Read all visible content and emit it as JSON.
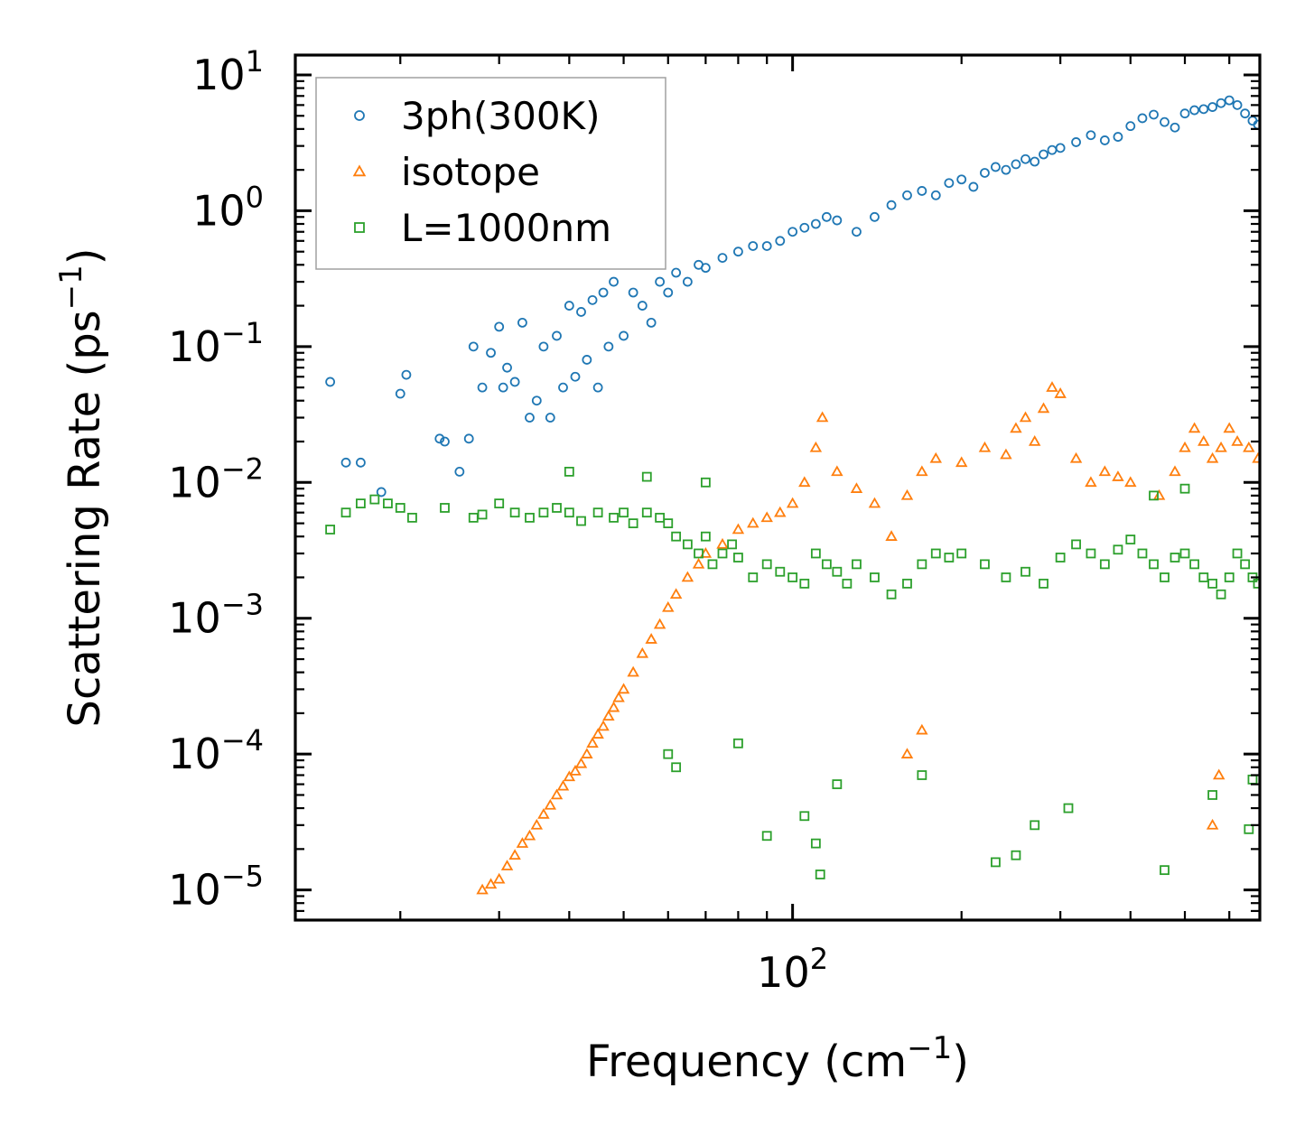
{
  "chart_data": {
    "type": "scatter",
    "title": "",
    "xlabel": "Frequency (cm⁻¹)",
    "ylabel": "Scattering Rate (ps⁻¹)",
    "xscale": "log",
    "yscale": "log",
    "xlim": [
      13,
      680
    ],
    "ylim": [
      6e-06,
      14
    ],
    "xticks": [
      {
        "value": 100,
        "base": "10",
        "exp": "2"
      }
    ],
    "yticks": [
      {
        "value": 10,
        "base": "10",
        "exp": "1"
      },
      {
        "value": 1,
        "base": "10",
        "exp": "0"
      },
      {
        "value": 0.1,
        "base": "10",
        "exp": "−1"
      },
      {
        "value": 0.01,
        "base": "10",
        "exp": "−2"
      },
      {
        "value": 0.001,
        "base": "10",
        "exp": "−3"
      },
      {
        "value": 0.0001,
        "base": "10",
        "exp": "−4"
      },
      {
        "value": 1e-05,
        "base": "10",
        "exp": "−5"
      }
    ],
    "legend_position": "top-left",
    "series": [
      {
        "name": "3ph(300K)",
        "marker": "circle",
        "color": "#1f77b4",
        "points": [
          [
            15,
            0.055
          ],
          [
            16,
            0.014
          ],
          [
            17,
            0.014
          ],
          [
            18.5,
            0.0085
          ],
          [
            20,
            0.045
          ],
          [
            20.5,
            0.062
          ],
          [
            23.5,
            0.021
          ],
          [
            24,
            0.02
          ],
          [
            25.5,
            0.012
          ],
          [
            26.5,
            0.021
          ],
          [
            27,
            0.1
          ],
          [
            28,
            0.05
          ],
          [
            29,
            0.09
          ],
          [
            30,
            0.14
          ],
          [
            30.5,
            0.05
          ],
          [
            31,
            0.07
          ],
          [
            32,
            0.055
          ],
          [
            33,
            0.15
          ],
          [
            34,
            0.03
          ],
          [
            35,
            0.04
          ],
          [
            36,
            0.1
          ],
          [
            37,
            0.03
          ],
          [
            38,
            0.12
          ],
          [
            39,
            0.05
          ],
          [
            40,
            0.2
          ],
          [
            41,
            0.06
          ],
          [
            42,
            0.18
          ],
          [
            43,
            0.08
          ],
          [
            44,
            0.22
          ],
          [
            45,
            0.05
          ],
          [
            46,
            0.25
          ],
          [
            47,
            0.1
          ],
          [
            48,
            0.3
          ],
          [
            50,
            0.12
          ],
          [
            52,
            0.25
          ],
          [
            54,
            0.2
          ],
          [
            56,
            0.15
          ],
          [
            58,
            0.3
          ],
          [
            60,
            0.25
          ],
          [
            62,
            0.35
          ],
          [
            65,
            0.3
          ],
          [
            68,
            0.4
          ],
          [
            70,
            0.38
          ],
          [
            75,
            0.45
          ],
          [
            80,
            0.5
          ],
          [
            85,
            0.55
          ],
          [
            90,
            0.55
          ],
          [
            95,
            0.6
          ],
          [
            100,
            0.7
          ],
          [
            105,
            0.75
          ],
          [
            110,
            0.8
          ],
          [
            115,
            0.9
          ],
          [
            120,
            0.85
          ],
          [
            130,
            0.7
          ],
          [
            140,
            0.9
          ],
          [
            150,
            1.1
          ],
          [
            160,
            1.3
          ],
          [
            170,
            1.4
          ],
          [
            180,
            1.3
          ],
          [
            190,
            1.6
          ],
          [
            200,
            1.7
          ],
          [
            210,
            1.5
          ],
          [
            220,
            1.9
          ],
          [
            230,
            2.1
          ],
          [
            240,
            2.0
          ],
          [
            250,
            2.2
          ],
          [
            260,
            2.4
          ],
          [
            270,
            2.3
          ],
          [
            280,
            2.6
          ],
          [
            290,
            2.8
          ],
          [
            300,
            2.9
          ],
          [
            320,
            3.2
          ],
          [
            340,
            3.6
          ],
          [
            360,
            3.3
          ],
          [
            380,
            3.5
          ],
          [
            400,
            4.2
          ],
          [
            420,
            4.8
          ],
          [
            440,
            5.1
          ],
          [
            460,
            4.5
          ],
          [
            480,
            4.1
          ],
          [
            500,
            5.2
          ],
          [
            520,
            5.5
          ],
          [
            540,
            5.6
          ],
          [
            560,
            5.8
          ],
          [
            580,
            6.2
          ],
          [
            600,
            6.5
          ],
          [
            620,
            6.0
          ],
          [
            640,
            5.2
          ],
          [
            660,
            4.6
          ],
          [
            675,
            4.3
          ]
        ]
      },
      {
        "name": "isotope",
        "marker": "triangle",
        "color": "#ff7f0e",
        "points": [
          [
            28,
            1e-05
          ],
          [
            29,
            1.1e-05
          ],
          [
            30,
            1.2e-05
          ],
          [
            31,
            1.5e-05
          ],
          [
            32,
            1.8e-05
          ],
          [
            33,
            2.2e-05
          ],
          [
            34,
            2.5e-05
          ],
          [
            35,
            3e-05
          ],
          [
            36,
            3.6e-05
          ],
          [
            37,
            4.2e-05
          ],
          [
            38,
            5e-05
          ],
          [
            39,
            5.8e-05
          ],
          [
            40,
            6.8e-05
          ],
          [
            41,
            7.5e-05
          ],
          [
            42,
            8.5e-05
          ],
          [
            43,
            0.0001
          ],
          [
            44,
            0.00012
          ],
          [
            45,
            0.00014
          ],
          [
            46,
            0.00016
          ],
          [
            47,
            0.00019
          ],
          [
            48,
            0.00022
          ],
          [
            49,
            0.00026
          ],
          [
            50,
            0.0003
          ],
          [
            52,
            0.0004
          ],
          [
            54,
            0.00055
          ],
          [
            56,
            0.0007
          ],
          [
            58,
            0.0009
          ],
          [
            60,
            0.0012
          ],
          [
            62,
            0.0015
          ],
          [
            65,
            0.002
          ],
          [
            68,
            0.0025
          ],
          [
            70,
            0.003
          ],
          [
            75,
            0.0035
          ],
          [
            80,
            0.0045
          ],
          [
            85,
            0.005
          ],
          [
            90,
            0.0055
          ],
          [
            95,
            0.006
          ],
          [
            100,
            0.007
          ],
          [
            105,
            0.01
          ],
          [
            110,
            0.018
          ],
          [
            113,
            0.03
          ],
          [
            120,
            0.012
          ],
          [
            130,
            0.009
          ],
          [
            140,
            0.007
          ],
          [
            150,
            0.004
          ],
          [
            160,
            0.008
          ],
          [
            170,
            0.012
          ],
          [
            180,
            0.015
          ],
          [
            200,
            0.014
          ],
          [
            220,
            0.018
          ],
          [
            240,
            0.016
          ],
          [
            250,
            0.025
          ],
          [
            260,
            0.03
          ],
          [
            270,
            0.02
          ],
          [
            280,
            0.035
          ],
          [
            290,
            0.05
          ],
          [
            300,
            0.045
          ],
          [
            320,
            0.015
          ],
          [
            340,
            0.01
          ],
          [
            360,
            0.012
          ],
          [
            380,
            0.011
          ],
          [
            400,
            0.01
          ],
          [
            450,
            0.008
          ],
          [
            480,
            0.012
          ],
          [
            500,
            0.018
          ],
          [
            520,
            0.025
          ],
          [
            540,
            0.02
          ],
          [
            560,
            0.015
          ],
          [
            580,
            0.018
          ],
          [
            600,
            0.025
          ],
          [
            620,
            0.02
          ],
          [
            650,
            0.018
          ],
          [
            675,
            0.015
          ],
          [
            160,
            0.0001
          ],
          [
            170,
            0.00015
          ],
          [
            560,
            3e-05
          ],
          [
            575,
            7e-05
          ]
        ]
      },
      {
        "name": "L=1000nm",
        "marker": "square",
        "color": "#2ca02c",
        "points": [
          [
            15,
            0.0045
          ],
          [
            16,
            0.006
          ],
          [
            17,
            0.007
          ],
          [
            18,
            0.0075
          ],
          [
            19,
            0.007
          ],
          [
            20,
            0.0065
          ],
          [
            21,
            0.0055
          ],
          [
            24,
            0.0065
          ],
          [
            27,
            0.0055
          ],
          [
            28,
            0.0058
          ],
          [
            30,
            0.007
          ],
          [
            32,
            0.006
          ],
          [
            34,
            0.0055
          ],
          [
            36,
            0.006
          ],
          [
            38,
            0.0065
          ],
          [
            40,
            0.006
          ],
          [
            42,
            0.0052
          ],
          [
            45,
            0.006
          ],
          [
            48,
            0.0055
          ],
          [
            50,
            0.006
          ],
          [
            52,
            0.005
          ],
          [
            55,
            0.006
          ],
          [
            58,
            0.0055
          ],
          [
            60,
            0.005
          ],
          [
            62,
            0.004
          ],
          [
            65,
            0.0035
          ],
          [
            68,
            0.003
          ],
          [
            70,
            0.004
          ],
          [
            72,
            0.0025
          ],
          [
            75,
            0.003
          ],
          [
            78,
            0.0035
          ],
          [
            80,
            0.0028
          ],
          [
            85,
            0.002
          ],
          [
            90,
            0.0025
          ],
          [
            95,
            0.0022
          ],
          [
            100,
            0.002
          ],
          [
            105,
            0.0018
          ],
          [
            110,
            0.003
          ],
          [
            115,
            0.0025
          ],
          [
            120,
            0.0022
          ],
          [
            125,
            0.0018
          ],
          [
            130,
            0.0025
          ],
          [
            140,
            0.002
          ],
          [
            150,
            0.0015
          ],
          [
            160,
            0.0018
          ],
          [
            170,
            0.0025
          ],
          [
            180,
            0.003
          ],
          [
            190,
            0.0028
          ],
          [
            200,
            0.003
          ],
          [
            220,
            0.0025
          ],
          [
            240,
            0.002
          ],
          [
            260,
            0.0022
          ],
          [
            280,
            0.0018
          ],
          [
            300,
            0.0028
          ],
          [
            320,
            0.0035
          ],
          [
            340,
            0.003
          ],
          [
            360,
            0.0025
          ],
          [
            380,
            0.0032
          ],
          [
            400,
            0.0038
          ],
          [
            420,
            0.003
          ],
          [
            440,
            0.0025
          ],
          [
            460,
            0.002
          ],
          [
            480,
            0.0028
          ],
          [
            500,
            0.003
          ],
          [
            520,
            0.0025
          ],
          [
            540,
            0.002
          ],
          [
            560,
            0.0018
          ],
          [
            580,
            0.0015
          ],
          [
            600,
            0.002
          ],
          [
            620,
            0.003
          ],
          [
            640,
            0.0025
          ],
          [
            660,
            0.002
          ],
          [
            675,
            0.0018
          ],
          [
            60,
            0.0001
          ],
          [
            62,
            8e-05
          ],
          [
            80,
            0.00012
          ],
          [
            90,
            2.5e-05
          ],
          [
            105,
            3.5e-05
          ],
          [
            110,
            2.2e-05
          ],
          [
            112,
            1.3e-05
          ],
          [
            120,
            6e-05
          ],
          [
            170,
            7e-05
          ],
          [
            230,
            1.6e-05
          ],
          [
            250,
            1.8e-05
          ],
          [
            270,
            3e-05
          ],
          [
            310,
            4e-05
          ],
          [
            460,
            1.4e-05
          ],
          [
            560,
            5e-05
          ],
          [
            650,
            2.8e-05
          ],
          [
            660,
            6.5e-05
          ],
          [
            40,
            0.012
          ],
          [
            55,
            0.011
          ],
          [
            70,
            0.01
          ],
          [
            440,
            0.008
          ],
          [
            500,
            0.009
          ]
        ]
      }
    ]
  }
}
